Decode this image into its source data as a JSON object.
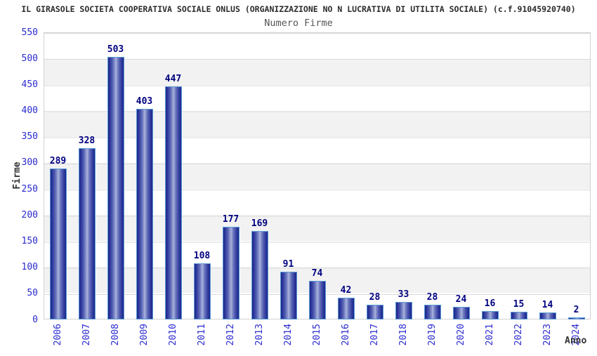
{
  "header": {
    "title": "IL GIRASOLE SOCIETA COOPERATIVA SOCIALE ONLUS (ORGANIZZAZIONE NO N LUCRATIVA DI UTILITA SOCIALE) (c.f.91045920740)",
    "subtitle": "Numero Firme"
  },
  "chart_data": {
    "type": "bar",
    "title": "Numero Firme",
    "categories": [
      "2006",
      "2007",
      "2008",
      "2009",
      "2010",
      "2011",
      "2012",
      "2013",
      "2014",
      "2015",
      "2016",
      "2017",
      "2018",
      "2019",
      "2020",
      "2021",
      "2022",
      "2023",
      "2024"
    ],
    "values": [
      289,
      328,
      503,
      403,
      447,
      108,
      177,
      169,
      91,
      74,
      42,
      28,
      33,
      28,
      24,
      16,
      15,
      14,
      2
    ],
    "xlabel": "Anno",
    "ylabel": "Firme",
    "ylim": [
      0,
      550
    ],
    "yticks": [
      0,
      50,
      100,
      150,
      200,
      250,
      300,
      350,
      400,
      450,
      500,
      550
    ],
    "grid": "horizontal",
    "legend": "none",
    "band_style": "alternating-horizontal-bands",
    "colors": {
      "bar_dark": "#1c278a",
      "bar_light": "#aeb5de",
      "bar_border": "#5b9bd5",
      "axis_tick_label": "#2b2bd0",
      "value_label": "#000080",
      "band_gray": "#f2f2f2",
      "band_white": "#ffffff",
      "gridline": "#d9d9d9",
      "title_text": "#2b2b2b",
      "subtitle_text": "#555555"
    }
  }
}
